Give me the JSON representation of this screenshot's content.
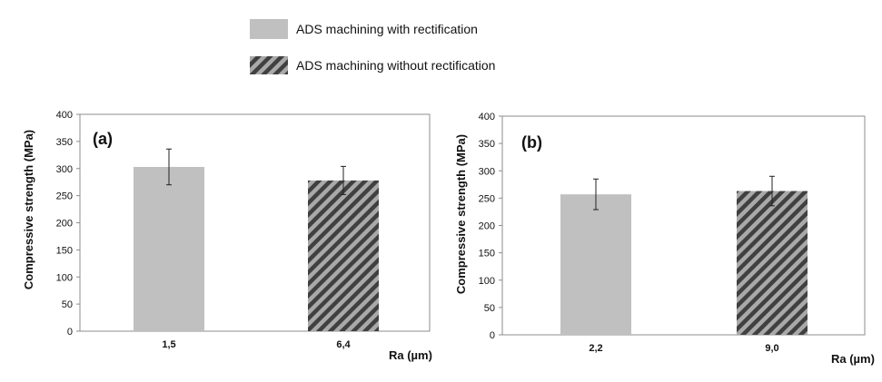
{
  "legend": {
    "entries": [
      {
        "label": "ADS machining with rectification",
        "style": "solid"
      },
      {
        "label": "ADS machining without rectification",
        "style": "hatched"
      }
    ]
  },
  "colors": {
    "solid_fill": "#c0c0c0",
    "hatch_dark": "#404040",
    "hatch_light": "#a9a9a9",
    "axis": "#8c8c8c",
    "error_bar": "#222222"
  },
  "chart_data": [
    {
      "type": "bar",
      "panel_label": "(a)",
      "categories": [
        "1,5",
        "6,4"
      ],
      "values": [
        303,
        278
      ],
      "errors": [
        33,
        26
      ],
      "styles": [
        "solid",
        "hatched"
      ],
      "ylabel": "Compressive strength (MPa)",
      "xlabel": "Ra (µm)",
      "ylim": [
        0,
        400
      ],
      "yticks": [
        "0",
        "50",
        "100",
        "150",
        "200",
        "250",
        "300",
        "350",
        "400"
      ],
      "grid": false
    },
    {
      "type": "bar",
      "panel_label": "(b)",
      "categories": [
        "2,2",
        "9,0"
      ],
      "values": [
        257,
        263
      ],
      "errors": [
        28,
        27
      ],
      "styles": [
        "solid",
        "hatched"
      ],
      "ylabel": "Compressive strength (MPa)",
      "xlabel": "Ra (µm)",
      "ylim": [
        0,
        400
      ],
      "yticks": [
        "0",
        "50",
        "100",
        "150",
        "200",
        "250",
        "300",
        "350",
        "400"
      ],
      "grid": false
    }
  ]
}
